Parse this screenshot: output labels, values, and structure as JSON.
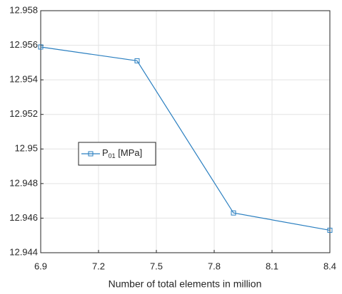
{
  "chart_data": {
    "type": "line",
    "x_label": "Number of total elements in million",
    "x": [
      6.9,
      7.4,
      7.9,
      8.4
    ],
    "series": [
      {
        "name": "P01 [MPa]",
        "color": "#2a7fc0",
        "values": [
          12.9559,
          12.9551,
          12.9463,
          12.9453
        ]
      }
    ],
    "xlim": [
      6.9,
      8.4
    ],
    "xticks": [
      6.9,
      7.2,
      7.5,
      7.8,
      8.1,
      8.4
    ],
    "ylim": [
      12.944,
      12.958
    ],
    "yticks": [
      12.944,
      12.946,
      12.948,
      12.95,
      12.952,
      12.954,
      12.956,
      12.958
    ],
    "grid": true,
    "legend": "west"
  }
}
